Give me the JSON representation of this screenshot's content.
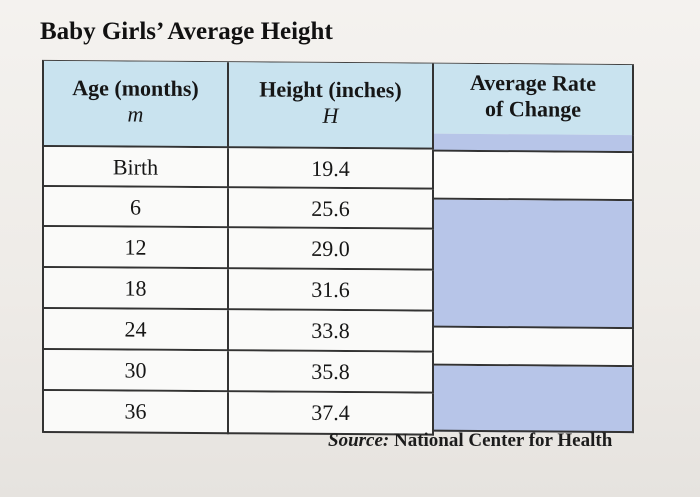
{
  "title": "Baby Girls’ Average Height",
  "headers": {
    "age": "Age (months)",
    "age_var": "m",
    "height": "Height (inches)",
    "height_var": "H",
    "rate_line1": "Average Rate",
    "rate_line2": "of Change"
  },
  "rows": [
    {
      "age": "Birth",
      "height": "19.4"
    },
    {
      "age": "6",
      "height": "25.6"
    },
    {
      "age": "12",
      "height": "29.0"
    },
    {
      "age": "18",
      "height": "31.6"
    },
    {
      "age": "24",
      "height": "33.8"
    },
    {
      "age": "30",
      "height": "35.8"
    },
    {
      "age": "36",
      "height": "37.4"
    }
  ],
  "source": {
    "label": "Source:",
    "text": "National Center for Health"
  },
  "colors": {
    "header_bg": "#c9e3ef",
    "answer_box": "#b7c5e8"
  }
}
